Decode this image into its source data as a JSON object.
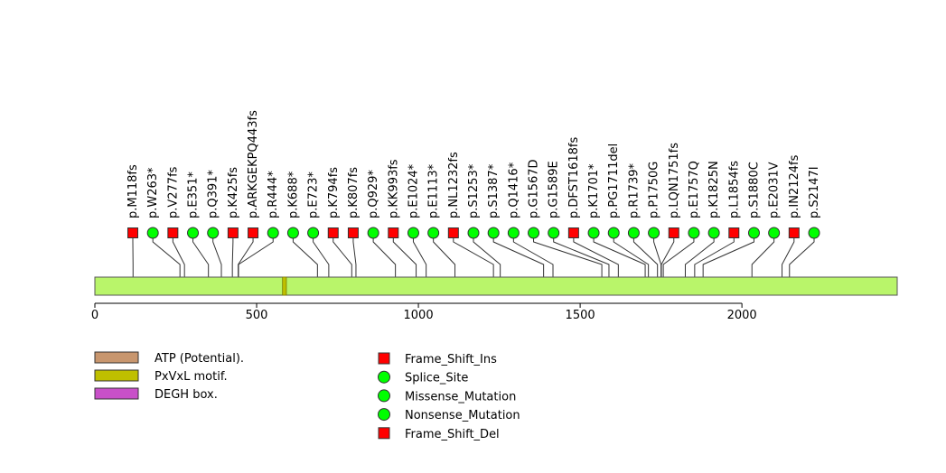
{
  "chart_data": {
    "type": "lollipop",
    "protein_length": 2480,
    "x_axis": {
      "ticks": [
        0,
        500,
        1000,
        1500,
        2000
      ],
      "tick_labels": [
        "0",
        "500",
        "1000",
        "1500",
        "2000"
      ]
    },
    "domains": [
      {
        "name": "PxVxL motif.",
        "start": 580,
        "end": 592,
        "color": "#bfbf00"
      }
    ],
    "mutations": [
      {
        "label": "p.M118fs",
        "pos": 118,
        "type": "Frame_Shift_Ins"
      },
      {
        "label": "p.W263*",
        "pos": 263,
        "type": "Nonsense_Mutation"
      },
      {
        "label": "p.V277fs",
        "pos": 277,
        "type": "Frame_Shift_Del"
      },
      {
        "label": "p.E351*",
        "pos": 351,
        "type": "Nonsense_Mutation"
      },
      {
        "label": "p.Q391*",
        "pos": 391,
        "type": "Nonsense_Mutation"
      },
      {
        "label": "p.K425fs",
        "pos": 425,
        "type": "Frame_Shift_Del"
      },
      {
        "label": "p.ARKGEKPQ443fs",
        "pos": 443,
        "type": "Frame_Shift_Del"
      },
      {
        "label": "p.R444*",
        "pos": 444,
        "type": "Nonsense_Mutation"
      },
      {
        "label": "p.K688*",
        "pos": 688,
        "type": "Nonsense_Mutation"
      },
      {
        "label": "p.E723*",
        "pos": 723,
        "type": "Nonsense_Mutation"
      },
      {
        "label": "p.K794fs",
        "pos": 794,
        "type": "Frame_Shift_Del"
      },
      {
        "label": "p.K807fs",
        "pos": 807,
        "type": "Frame_Shift_Del"
      },
      {
        "label": "p.Q929*",
        "pos": 929,
        "type": "Nonsense_Mutation"
      },
      {
        "label": "p.KK993fs",
        "pos": 993,
        "type": "Frame_Shift_Del"
      },
      {
        "label": "p.E1024*",
        "pos": 1024,
        "type": "Nonsense_Mutation"
      },
      {
        "label": "p.E1113*",
        "pos": 1113,
        "type": "Nonsense_Mutation"
      },
      {
        "label": "p.NL1232fs",
        "pos": 1232,
        "type": "Frame_Shift_Del"
      },
      {
        "label": "p.S1253*",
        "pos": 1253,
        "type": "Nonsense_Mutation"
      },
      {
        "label": "p.S1387*",
        "pos": 1387,
        "type": "Nonsense_Mutation"
      },
      {
        "label": "p.Q1416*",
        "pos": 1416,
        "type": "Nonsense_Mutation"
      },
      {
        "label": "p.G1567D",
        "pos": 1567,
        "type": "Missense_Mutation"
      },
      {
        "label": "p.G1589E",
        "pos": 1589,
        "type": "Missense_Mutation"
      },
      {
        "label": "p.DFST1618fs",
        "pos": 1618,
        "type": "Frame_Shift_Del"
      },
      {
        "label": "p.K1701*",
        "pos": 1701,
        "type": "Nonsense_Mutation"
      },
      {
        "label": "p.PG1711del",
        "pos": 1711,
        "type": "Nonsense_Mutation"
      },
      {
        "label": "p.R1739*",
        "pos": 1739,
        "type": "Nonsense_Mutation"
      },
      {
        "label": "p.P1750G",
        "pos": 1750,
        "type": "Missense_Mutation"
      },
      {
        "label": "p.LQN1751fs",
        "pos": 1751,
        "type": "Frame_Shift_Del"
      },
      {
        "label": "p.E1757Q",
        "pos": 1757,
        "type": "Missense_Mutation"
      },
      {
        "label": "p.K1825N",
        "pos": 1825,
        "type": "Missense_Mutation"
      },
      {
        "label": "p.L1854fs",
        "pos": 1854,
        "type": "Frame_Shift_Del"
      },
      {
        "label": "p.S1880C",
        "pos": 1880,
        "type": "Missense_Mutation"
      },
      {
        "label": "p.E2031V",
        "pos": 2031,
        "type": "Missense_Mutation"
      },
      {
        "label": "p.IN2124fs",
        "pos": 2124,
        "type": "Frame_Shift_Del"
      },
      {
        "label": "p.S2147I",
        "pos": 2147,
        "type": "Missense_Mutation"
      }
    ],
    "marker_styles": {
      "Frame_Shift_Ins": {
        "shape": "square",
        "color": "#ff0000"
      },
      "Frame_Shift_Del": {
        "shape": "square",
        "color": "#ff0000"
      },
      "Splice_Site": {
        "shape": "circle",
        "color": "#00ff00"
      },
      "Missense_Mutation": {
        "shape": "circle",
        "color": "#00ff00"
      },
      "Nonsense_Mutation": {
        "shape": "circle",
        "color": "#00ff00"
      }
    },
    "protein_color": "#b9f56a",
    "domain_legend": [
      {
        "name": "ATP (Potential).",
        "color": "#c8966e"
      },
      {
        "name": "PxVxL motif.",
        "color": "#bfbf00"
      },
      {
        "name": "DEGH box.",
        "color": "#c850c8"
      }
    ],
    "mutation_legend": [
      {
        "name": "Frame_Shift_Ins",
        "shape": "square",
        "color": "#ff0000"
      },
      {
        "name": "Splice_Site",
        "shape": "circle",
        "color": "#00ff00"
      },
      {
        "name": "Missense_Mutation",
        "shape": "circle",
        "color": "#00ff00"
      },
      {
        "name": "Nonsense_Mutation",
        "shape": "circle",
        "color": "#00ff00"
      },
      {
        "name": "Frame_Shift_Del",
        "shape": "square",
        "color": "#ff0000"
      }
    ]
  }
}
